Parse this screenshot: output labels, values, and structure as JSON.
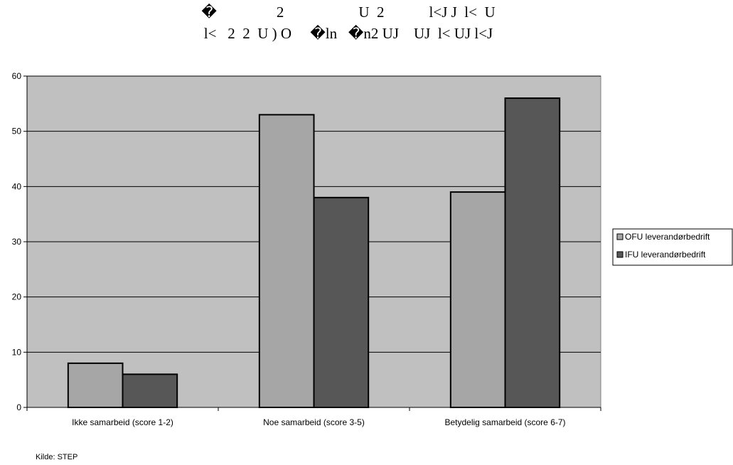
{
  "chart_data": {
    "type": "bar",
    "title_lines": [
      "�                2                    U  2            l<J J  l<  U",
      "l<   2  2  U ) O     �ln   �n2 UJ    UJ  l< UJ l<J"
    ],
    "categories": [
      "Ikke samarbeid (score 1-2)",
      "Noe samarbeid (score 3-5)",
      "Betydelig samarbeid (score 6-7)"
    ],
    "series": [
      {
        "name": "OFU leverandørbedrift",
        "values": [
          8,
          53,
          39
        ],
        "color": "#a6a6a6"
      },
      {
        "name": "IFU leverandørbedrift",
        "values": [
          6,
          38,
          56
        ],
        "color": "#575757"
      }
    ],
    "ylim": [
      0,
      60
    ],
    "yticks": [
      "0",
      "10",
      "20",
      "30",
      "40",
      "50",
      "60"
    ],
    "grid": true,
    "plot_background": "#c0c0c0",
    "legend_position": "right",
    "source": "Kilde: STEP"
  }
}
